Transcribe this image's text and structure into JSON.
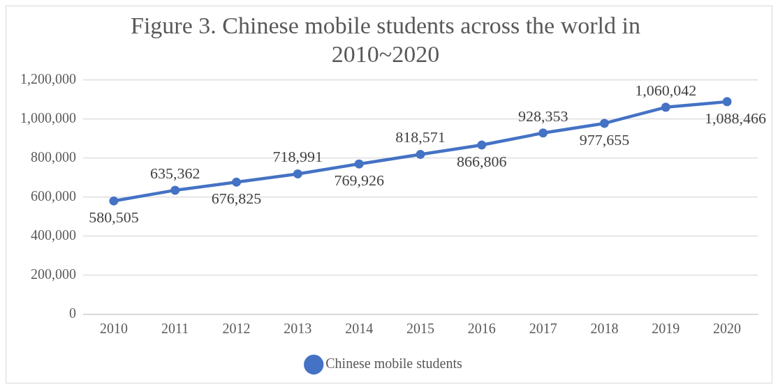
{
  "chart_data": {
    "type": "line",
    "title": "Figure 3. Chinese mobile students across the world in 2010~2020",
    "categories": [
      "2010",
      "2011",
      "2012",
      "2013",
      "2014",
      "2015",
      "2016",
      "2017",
      "2018",
      "2019",
      "2020"
    ],
    "series": [
      {
        "name": "Chinese mobile students",
        "color": "#4472c4",
        "values": [
          580505,
          635362,
          676825,
          718991,
          769926,
          818571,
          866806,
          928353,
          977655,
          1060042,
          1088466
        ],
        "value_labels": [
          "580,505",
          "635,362",
          "676,825",
          "718,991",
          "769,926",
          "818,571",
          "866,806",
          "928,353",
          "977,655",
          "1,060,042",
          "1,088,466"
        ]
      }
    ],
    "ylim": [
      0,
      1200000
    ],
    "yticks": [
      {
        "value": 0,
        "label": "0"
      },
      {
        "value": 200000,
        "label": "200,000"
      },
      {
        "value": 400000,
        "label": "400,000"
      },
      {
        "value": 600000,
        "label": "600,000"
      },
      {
        "value": 800000,
        "label": "800,000"
      },
      {
        "value": 1000000,
        "label": "1,000,000"
      },
      {
        "value": 1200000,
        "label": "1,200,000"
      }
    ],
    "grid": "y",
    "legend": "bottom",
    "marker": "circle",
    "line_style": "solid"
  }
}
